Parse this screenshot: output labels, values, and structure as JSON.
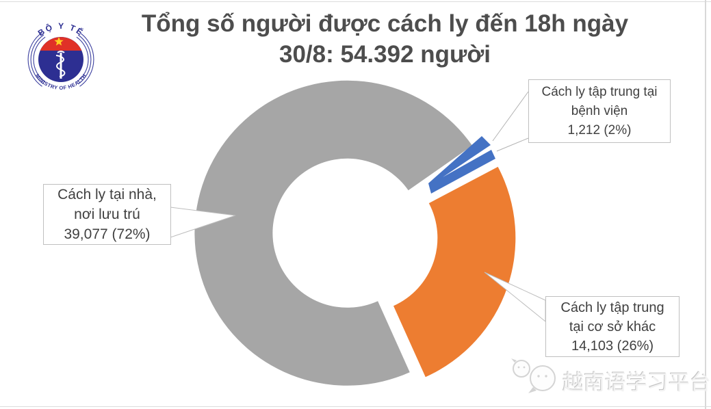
{
  "title": {
    "line1": "Tổng số người được cách ly đến 18h ngày",
    "line2": "30/8: 54.392 người",
    "color": "#4d4d4d"
  },
  "logo": {
    "top_text": "BỘ Y TẾ",
    "bottom_text": "MINISTRY OF HEALTH",
    "navy": "#2d2f92",
    "red": "#e03127",
    "star_yellow": "#ffd021"
  },
  "chart_data": {
    "type": "pie",
    "variant": "exploded-doughnut",
    "title": "Tổng số người được cách ly đến 18h ngày 30/8: 54.392 người",
    "total": 54392,
    "unit": "người",
    "direction": "clockwise",
    "start_angle_deg": 55,
    "hole_ratio": 0.49,
    "legend_position": "none",
    "slices": [
      {
        "name": "hospital",
        "label": "Cách ly tập trung tại bệnh viện",
        "value": 1212,
        "percent": 2,
        "color": "#4472c4"
      },
      {
        "name": "other",
        "label": "Cách ly tập trung tại cơ sở khác",
        "value": 14103,
        "percent": 26,
        "color": "#ed7d31"
      },
      {
        "name": "home",
        "label": "Cách ly tại nhà, nơi lưu trú",
        "value": 39077,
        "percent": 72,
        "color": "#a6a6a6"
      }
    ]
  },
  "callouts": {
    "home": {
      "lines": [
        "Cách ly tại nhà,",
        "nơi lưu trú",
        "39,077 (72%)"
      ]
    },
    "hospital": {
      "lines": [
        "Cách ly tập trung tại",
        "bệnh viện",
        "1,212 (2%)"
      ]
    },
    "other": {
      "lines": [
        "Cách ly tập trung",
        "tại cơ sở khác",
        "14,103 (26%)"
      ]
    }
  },
  "watermark": {
    "text": "越南语学习平台",
    "icon": "wechat-bubbles-icon"
  }
}
